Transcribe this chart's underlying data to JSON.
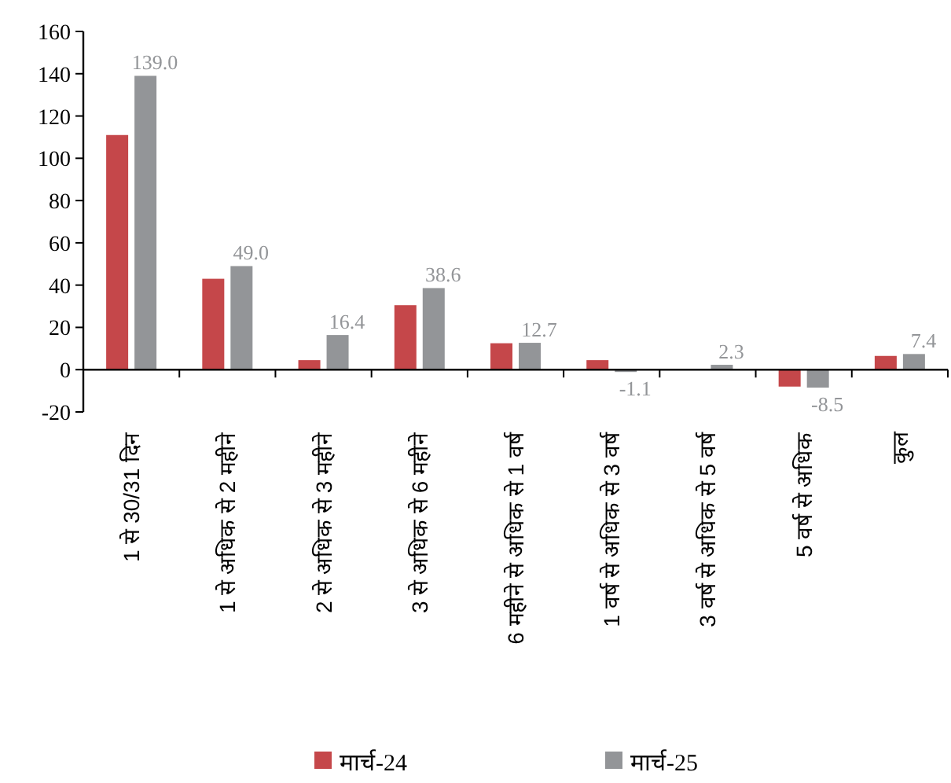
{
  "chart_data": {
    "type": "bar",
    "categories": [
      "1 से 30/31 दिन",
      "1 से अधिक से 2 महीने",
      "2 से अधिक से 3 महीने",
      "3 से अधिक से 6 महीने",
      "6 महीने से अधिक से 1 वर्ष",
      "1 वर्ष से अधिक से 3 वर्ष",
      "3 वर्ष से अधिक से 5 वर्ष",
      "5 वर्ष से अधिक",
      "कुल"
    ],
    "series": [
      {
        "name": "मार्च-24",
        "color": "#c5474a",
        "values": [
          111,
          43,
          4.5,
          30.5,
          12.5,
          4.5,
          0,
          -8,
          6.5
        ]
      },
      {
        "name": "मार्च-25",
        "color": "#939598",
        "values": [
          139.0,
          49.0,
          16.4,
          38.6,
          12.7,
          -1.1,
          2.3,
          -8.5,
          7.4
        ],
        "value_labels": [
          "139.0",
          "49.0",
          "16.4",
          "38.6",
          "12.7",
          "-1.1",
          "2.3",
          "-8.5",
          "7.4"
        ]
      }
    ],
    "ylim": [
      -20,
      160
    ],
    "yticks": [
      -20,
      0,
      20,
      40,
      60,
      80,
      100,
      120,
      140,
      160
    ],
    "legend": "bottom"
  }
}
